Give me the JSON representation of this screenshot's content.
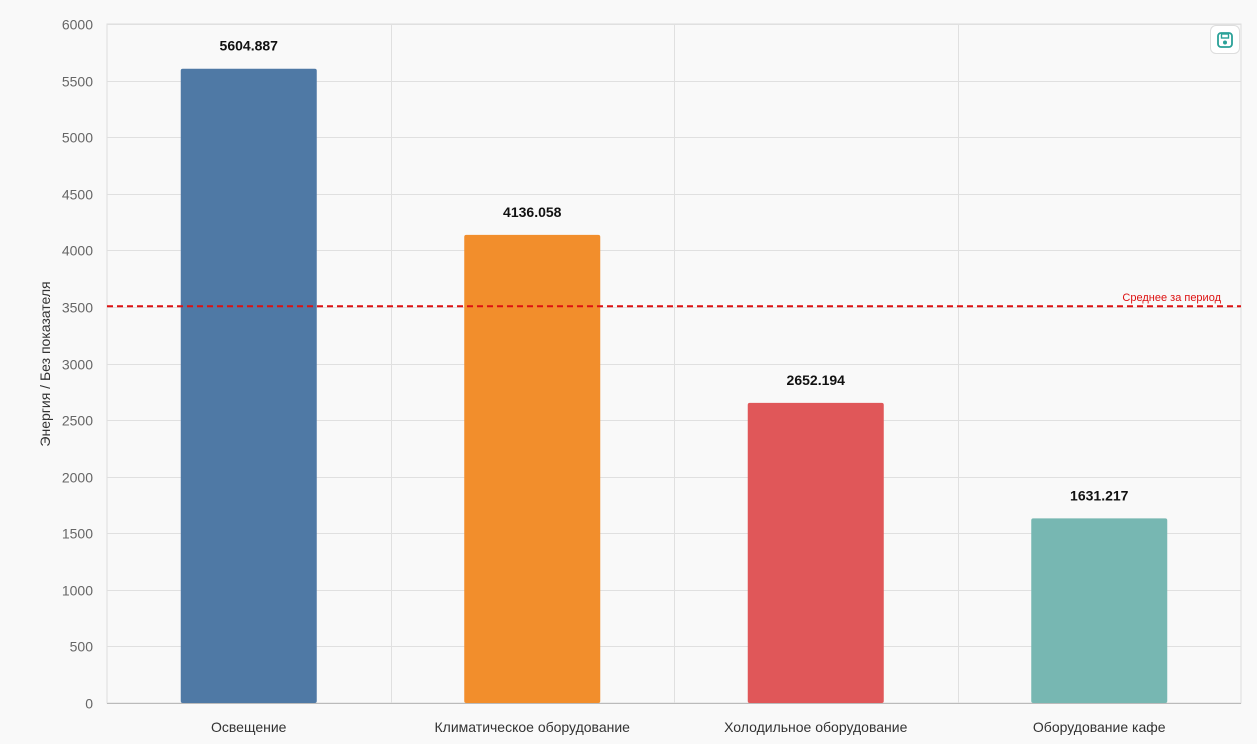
{
  "chart_data": {
    "type": "bar",
    "categories": [
      "Освещение",
      "Климатическое оборудование",
      "Холодильное оборудование",
      "Оборудование кафе"
    ],
    "values": [
      5604.887,
      4136.058,
      2652.194,
      1631.217
    ],
    "value_labels": [
      "5604.887",
      "4136.058",
      "2652.194",
      "1631.217"
    ],
    "colors": [
      "#4f79a5",
      "#f28e2c",
      "#e05759",
      "#77b7b2"
    ],
    "ylabel": "Энергия / Без показателя",
    "ylim": [
      0,
      6000
    ],
    "yticks": [
      0,
      500,
      1000,
      1500,
      2000,
      2500,
      3000,
      3500,
      4000,
      4500,
      5000,
      5500,
      6000
    ],
    "grid": true,
    "reference_line": {
      "label": "Среднее за период",
      "value": 3506,
      "color": "#dd1111"
    }
  },
  "toolbar": {
    "save_icon": "save-icon"
  }
}
